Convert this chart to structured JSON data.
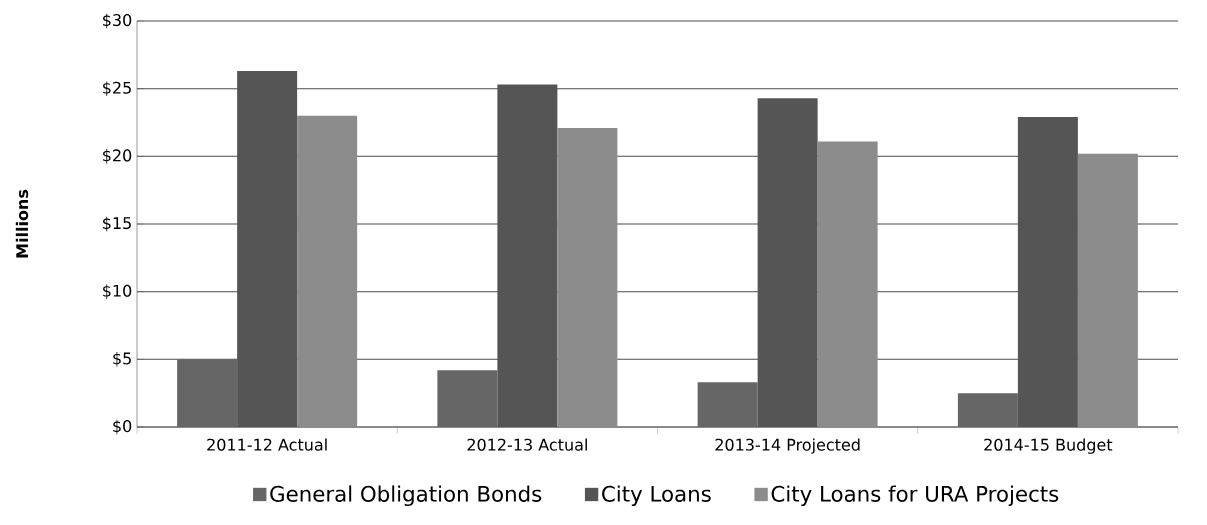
{
  "chart_data": {
    "type": "bar",
    "ylabel": "Millions",
    "categories": [
      "2011-12 Actual",
      "2012-13 Actual",
      "2013-14 Projected",
      "2014-15 Budget"
    ],
    "series": [
      {
        "name": "General Obligation Bonds",
        "color": "#666666",
        "values": [
          5.0,
          4.2,
          3.3,
          2.5
        ]
      },
      {
        "name": "City Loans",
        "color": "#555555",
        "values": [
          26.3,
          25.3,
          24.3,
          22.9
        ]
      },
      {
        "name": "City Loans for URA Projects",
        "color": "#8c8c8c",
        "values": [
          23.0,
          22.1,
          21.1,
          20.2
        ]
      }
    ],
    "ylim": [
      0,
      30
    ],
    "yticks": [
      {
        "value": 0,
        "label": "$0"
      },
      {
        "value": 5,
        "label": "$5"
      },
      {
        "value": 10,
        "label": "$10"
      },
      {
        "value": 15,
        "label": "$15"
      },
      {
        "value": 20,
        "label": "$20"
      },
      {
        "value": 25,
        "label": "$25"
      },
      {
        "value": 30,
        "label": "$30"
      }
    ],
    "grid": "y",
    "legend": "bottom"
  }
}
